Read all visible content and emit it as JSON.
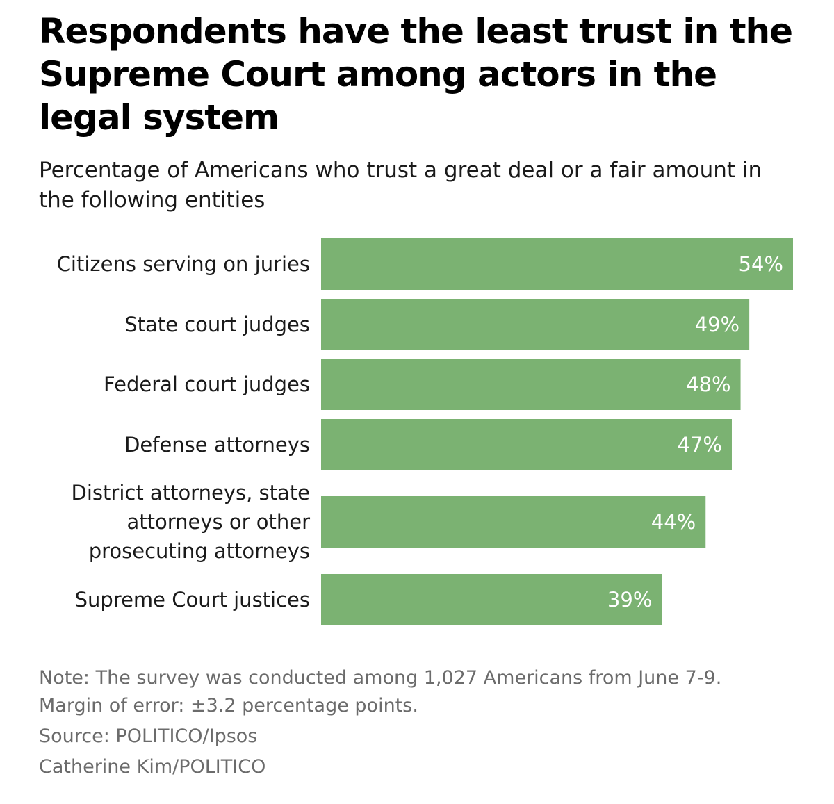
{
  "chart_data": {
    "type": "bar",
    "orientation": "horizontal",
    "title": "Respondents have the least trust in the Supreme Court among actors in the legal system",
    "subtitle": "Percentage of Americans who trust a great deal or a fair amount in the following entities",
    "categories": [
      [
        "Citizens serving on juries"
      ],
      [
        "State court judges"
      ],
      [
        "Federal court judges"
      ],
      [
        "Defense attorneys"
      ],
      [
        "District attorneys, state",
        "attorneys or other",
        "prosecuting attorneys"
      ],
      [
        "Supreme Court justices"
      ]
    ],
    "values": [
      54,
      49,
      48,
      47,
      44,
      39
    ],
    "value_labels": [
      "54%",
      "49%",
      "48%",
      "47%",
      "44%",
      "39%"
    ],
    "xlim": [
      0,
      54
    ],
    "bar_color": "#7bb272",
    "value_label_color": "#ffffff",
    "grid": false,
    "legend": "none"
  },
  "footer": {
    "note_line1": "Note: The survey was conducted among 1,027 Americans from June 7-9.",
    "note_line2": "Margin of error: ±3.2 percentage points.",
    "source": "Source: POLITICO/Ipsos",
    "credit": "Catherine Kim/POLITICO"
  }
}
